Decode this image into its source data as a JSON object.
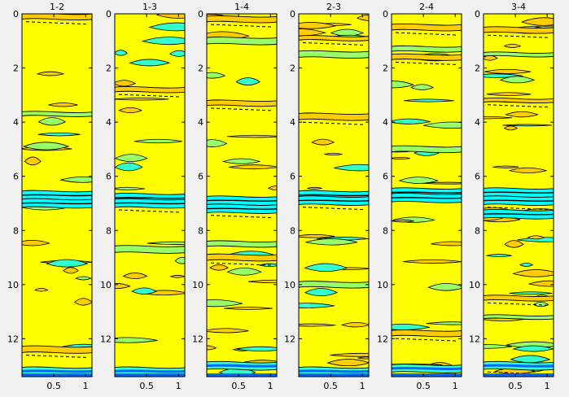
{
  "figure": {
    "background": "#f0f0f0",
    "colors": {
      "background_fill": "#ffff00",
      "level_low": "#ffcc00",
      "level_mid": "#99ff66",
      "level_high": "#33ffcc",
      "level_peak": "#00ffff",
      "level_deep": "#0066ff",
      "contour_line": "#000000"
    }
  },
  "chart_data": [
    {
      "type": "heatmap",
      "title": "1-2",
      "xlim": [
        0,
        1.1
      ],
      "ylim": [
        0,
        13.4
      ],
      "y_reversed": true,
      "xticks": [
        0.5,
        1
      ],
      "xtick_labels": [
        "0.5",
        "1"
      ],
      "yticks": [
        0,
        2,
        4,
        6,
        8,
        10,
        12
      ],
      "ytick_labels": [
        "0",
        "2",
        "4",
        "6",
        "8",
        "10",
        "12"
      ],
      "dense_bands_y": [
        0.1,
        3.7,
        6.7,
        7.0,
        12.4,
        13.2
      ]
    },
    {
      "type": "heatmap",
      "title": "1-3",
      "xlim": [
        0,
        1.1
      ],
      "ylim": [
        0,
        13.4
      ],
      "y_reversed": true,
      "xticks": [
        0.5,
        1
      ],
      "xtick_labels": [
        "0.5",
        "1"
      ],
      "yticks": [
        0,
        2,
        4,
        6,
        8,
        10,
        12
      ],
      "ytick_labels": [
        "0",
        "2",
        "4",
        "6",
        "8",
        "10",
        "12"
      ],
      "dense_bands_y": [
        2.8,
        6.8,
        7.0,
        8.7,
        13.2
      ]
    },
    {
      "type": "heatmap",
      "title": "1-4",
      "xlim": [
        0,
        1.1
      ],
      "ylim": [
        0,
        13.4
      ],
      "y_reversed": true,
      "xticks": [
        0.5,
        1
      ],
      "xtick_labels": [
        "0.5",
        "1"
      ],
      "yticks": [
        0,
        2,
        4,
        6,
        8,
        10,
        12
      ],
      "ytick_labels": [
        "0",
        "2",
        "4",
        "6",
        "8",
        "10",
        "12"
      ],
      "dense_bands_y": [
        0.2,
        1.0,
        3.3,
        6.9,
        7.2,
        8.5,
        9.0,
        13.0
      ]
    },
    {
      "type": "heatmap",
      "title": "2-3",
      "xlim": [
        0,
        1.1
      ],
      "ylim": [
        0,
        13.4
      ],
      "y_reversed": true,
      "xticks": [
        0.5,
        1
      ],
      "xtick_labels": [
        "0.5",
        "1"
      ],
      "yticks": [
        0,
        2,
        4,
        6,
        8,
        10,
        12
      ],
      "ytick_labels": [
        "0",
        "2",
        "4",
        "6",
        "8",
        "10",
        "12"
      ],
      "dense_bands_y": [
        0.9,
        1.5,
        3.8,
        6.7,
        6.9,
        10.0,
        13.2
      ]
    },
    {
      "type": "heatmap",
      "title": "2-4",
      "xlim": [
        0,
        1.1
      ],
      "ylim": [
        0,
        13.4
      ],
      "y_reversed": true,
      "xticks": [
        0.5,
        1
      ],
      "xtick_labels": [
        "0.5",
        "1"
      ],
      "yticks": [
        0,
        2,
        4,
        6,
        8,
        10,
        12
      ],
      "ytick_labels": [
        "0",
        "2",
        "4",
        "6",
        "8",
        "10",
        "12"
      ],
      "dense_bands_y": [
        0.5,
        1.3,
        1.6,
        5.0,
        6.6,
        6.8,
        11.8,
        13.1
      ]
    },
    {
      "type": "heatmap",
      "title": "3-4",
      "xlim": [
        0,
        1.1
      ],
      "ylim": [
        0,
        13.4
      ],
      "y_reversed": true,
      "xticks": [
        0.5,
        1
      ],
      "xtick_labels": [
        "0.5",
        "1"
      ],
      "yticks": [
        0,
        2,
        4,
        6,
        8,
        10,
        12
      ],
      "ytick_labels": [
        "0",
        "2",
        "4",
        "6",
        "8",
        "10",
        "12"
      ],
      "dense_bands_y": [
        0.6,
        1.5,
        3.2,
        6.6,
        6.9,
        7.4,
        10.5,
        11.2,
        13.0
      ]
    }
  ]
}
